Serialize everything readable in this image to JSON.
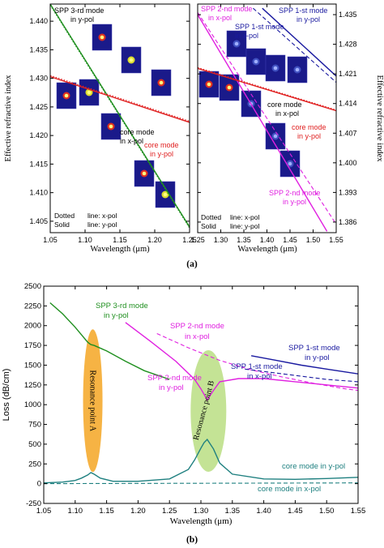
{
  "chart_data": [
    {
      "type": "line",
      "panel": "left of (a)",
      "xlabel": "Wavelength (μm)",
      "ylabel": "Effective refractive index",
      "xlim": [
        1.05,
        1.25
      ],
      "ylim": [
        1.403,
        1.443
      ],
      "xticks": [
        "1.05",
        "1.10",
        "1.15",
        "1.20",
        "1.25"
      ],
      "yticks": [
        "1.405",
        "1.410",
        "1.415",
        "1.420",
        "1.425",
        "1.430",
        "1.435",
        "1.440"
      ],
      "series": [
        {
          "name": "SPP 3-rd mode in y-pol",
          "color": "#1f8f1f",
          "style": "solid",
          "x": [
            1.05,
            1.25
          ],
          "y": [
            1.443,
            1.404
          ]
        },
        {
          "name": "SPP 3-rd mode in x-pol",
          "color": "#1f8f1f",
          "style": "dotted",
          "x": [
            1.05,
            1.25
          ],
          "y": [
            1.4428,
            1.4038
          ]
        },
        {
          "name": "core mode in x-pol",
          "color": "#e02020",
          "style": "dotted",
          "x": [
            1.05,
            1.25
          ],
          "y": [
            1.4305,
            1.4225
          ]
        },
        {
          "name": "core mode in y-pol",
          "color": "#e02020",
          "style": "solid",
          "x": [
            1.05,
            1.25
          ],
          "y": [
            1.4303,
            1.4223
          ]
        }
      ],
      "annotations": [
        "SPP 3-rd mode",
        "in y-pol",
        "core mode",
        "in x-pol",
        "core mode",
        "in y-pol",
        "Dotted",
        "line: x-pol",
        "Solid",
        "line: y-pol"
      ]
    },
    {
      "type": "line",
      "panel": "right of (a)",
      "xlabel": "Wavelength (μm)",
      "ylabel": "Effective refractive index",
      "xlim": [
        1.25,
        1.55
      ],
      "ylim": [
        1.3835,
        1.4375
      ],
      "xticks": [
        "1.25",
        "1.30",
        "1.35",
        "1.40",
        "1.45",
        "1.50",
        "1.55"
      ],
      "yticks": [
        "1.386",
        "1.393",
        "1.400",
        "1.407",
        "1.414",
        "1.421",
        "1.428",
        "1.435"
      ],
      "series": [
        {
          "name": "SPP 1-st mode in y-pol",
          "color": "#1a1aa0",
          "style": "solid",
          "x": [
            1.39,
            1.55
          ],
          "y": [
            1.4365,
            1.4205
          ]
        },
        {
          "name": "SPP 1-st mode in x-pol",
          "color": "#1a1aa0",
          "style": "dashed",
          "x": [
            1.37,
            1.55
          ],
          "y": [
            1.4365,
            1.419
          ]
        },
        {
          "name": "SPP 2-nd mode in x-pol",
          "color": "#e020e0",
          "style": "dashed",
          "x": [
            1.25,
            1.55
          ],
          "y": [
            1.4355,
            1.3855
          ]
        },
        {
          "name": "SPP 2-nd mode in y-pol",
          "color": "#e020e0",
          "style": "solid",
          "x": [
            1.25,
            1.53
          ],
          "y": [
            1.435,
            1.3838
          ]
        },
        {
          "name": "core mode in x-pol",
          "color": "#e02020",
          "style": "dotted",
          "x": [
            1.25,
            1.55
          ],
          "y": [
            1.4225,
            1.4125
          ]
        },
        {
          "name": "core mode in y-pol",
          "color": "#e02020",
          "style": "solid",
          "x": [
            1.25,
            1.55
          ],
          "y": [
            1.4223,
            1.4123
          ]
        }
      ],
      "annotations": [
        "SPP 2-nd mode",
        "in x-pol",
        "SPP 1-st mode",
        "in y-pol",
        "SPP 1-st mode",
        "in x-pol",
        "core mode",
        "in x-pol",
        "core mode",
        "in y-pol",
        "SPP 2-nd mode",
        "in y-pol",
        "Dotted",
        "line: x-pol",
        "Solid",
        "line: y-pol"
      ]
    },
    {
      "type": "line",
      "panel": "(b)",
      "xlabel": "Wavelength (μm)",
      "ylabel": "Loss (dB/cm)",
      "xlim": [
        1.05,
        1.55
      ],
      "ylim": [
        -250,
        2500
      ],
      "xticks": [
        "1.05",
        "1.10",
        "1.15",
        "1.20",
        "1.25",
        "1.30",
        "1.35",
        "1.40",
        "1.45",
        "1.50",
        "1.55"
      ],
      "yticks": [
        "-250",
        "0",
        "250",
        "500",
        "750",
        "1000",
        "1250",
        "1500",
        "1750",
        "2000",
        "2250",
        "2500"
      ],
      "series": [
        {
          "name": "SPP 3-rd mode in y-pol",
          "color": "#1f8f1f",
          "style": "solid",
          "x": [
            1.06,
            1.08,
            1.1,
            1.12,
            1.125,
            1.13,
            1.15,
            1.18,
            1.21,
            1.25
          ],
          "y": [
            2290,
            2150,
            1980,
            1790,
            1760,
            1750,
            1680,
            1550,
            1430,
            1320
          ]
        },
        {
          "name": "SPP 2-nd mode in x-pol",
          "color": "#e020e0",
          "style": "dashed",
          "x": [
            1.23,
            1.28,
            1.33,
            1.38,
            1.43,
            1.48,
            1.53,
            1.55
          ],
          "y": [
            1900,
            1720,
            1560,
            1440,
            1350,
            1270,
            1200,
            1180
          ]
        },
        {
          "name": "SPP 2-nd mode in y-pol",
          "color": "#e020e0",
          "style": "solid",
          "x": [
            1.18,
            1.22,
            1.26,
            1.29,
            1.3,
            1.31,
            1.32,
            1.33,
            1.36,
            1.4,
            1.45,
            1.5,
            1.55
          ],
          "y": [
            2040,
            1800,
            1550,
            1320,
            1200,
            1060,
            1180,
            1290,
            1330,
            1330,
            1290,
            1250,
            1210
          ]
        },
        {
          "name": "SPP 1-st mode in y-pol",
          "color": "#1a1aa0",
          "style": "solid",
          "x": [
            1.38,
            1.42,
            1.46,
            1.5,
            1.55
          ],
          "y": [
            1620,
            1560,
            1500,
            1450,
            1390
          ]
        },
        {
          "name": "SPP 1-st mode in x-pol",
          "color": "#1a1aa0",
          "style": "dashed",
          "x": [
            1.37,
            1.42,
            1.46,
            1.5,
            1.55
          ],
          "y": [
            1450,
            1400,
            1360,
            1320,
            1290
          ]
        },
        {
          "name": "core mode in y-pol",
          "color": "#1f8080",
          "style": "solid",
          "x": [
            1.05,
            1.08,
            1.1,
            1.11,
            1.12,
            1.125,
            1.13,
            1.14,
            1.16,
            1.2,
            1.25,
            1.28,
            1.29,
            1.3,
            1.305,
            1.31,
            1.32,
            1.33,
            1.35,
            1.4,
            1.45,
            1.5,
            1.55
          ],
          "y": [
            10,
            20,
            40,
            70,
            110,
            140,
            120,
            70,
            30,
            30,
            60,
            180,
            300,
            450,
            520,
            560,
            440,
            260,
            120,
            60,
            55,
            65,
            80
          ]
        },
        {
          "name": "core mode in x-pol",
          "color": "#1f8080",
          "style": "dashed",
          "x": [
            1.05,
            1.55
          ],
          "y": [
            0,
            10
          ]
        }
      ],
      "annotations": [
        "SPP 3-rd mode",
        "in y-pol",
        "SPP 2-nd mode",
        "in x-pol",
        "SPP 2-nd mode",
        "in y-pol",
        "SPP 1-st mode",
        "in y-pol",
        "SPP 1-st mode",
        "in x-pol",
        "core mode in y-pol",
        "core mode in x-pol",
        "Resonance point A",
        "Resonance point B"
      ]
    }
  ],
  "labels": {
    "panel_a": "(a)",
    "panel_b": "(b)"
  },
  "insets": [
    "mode-field-inset"
  ]
}
